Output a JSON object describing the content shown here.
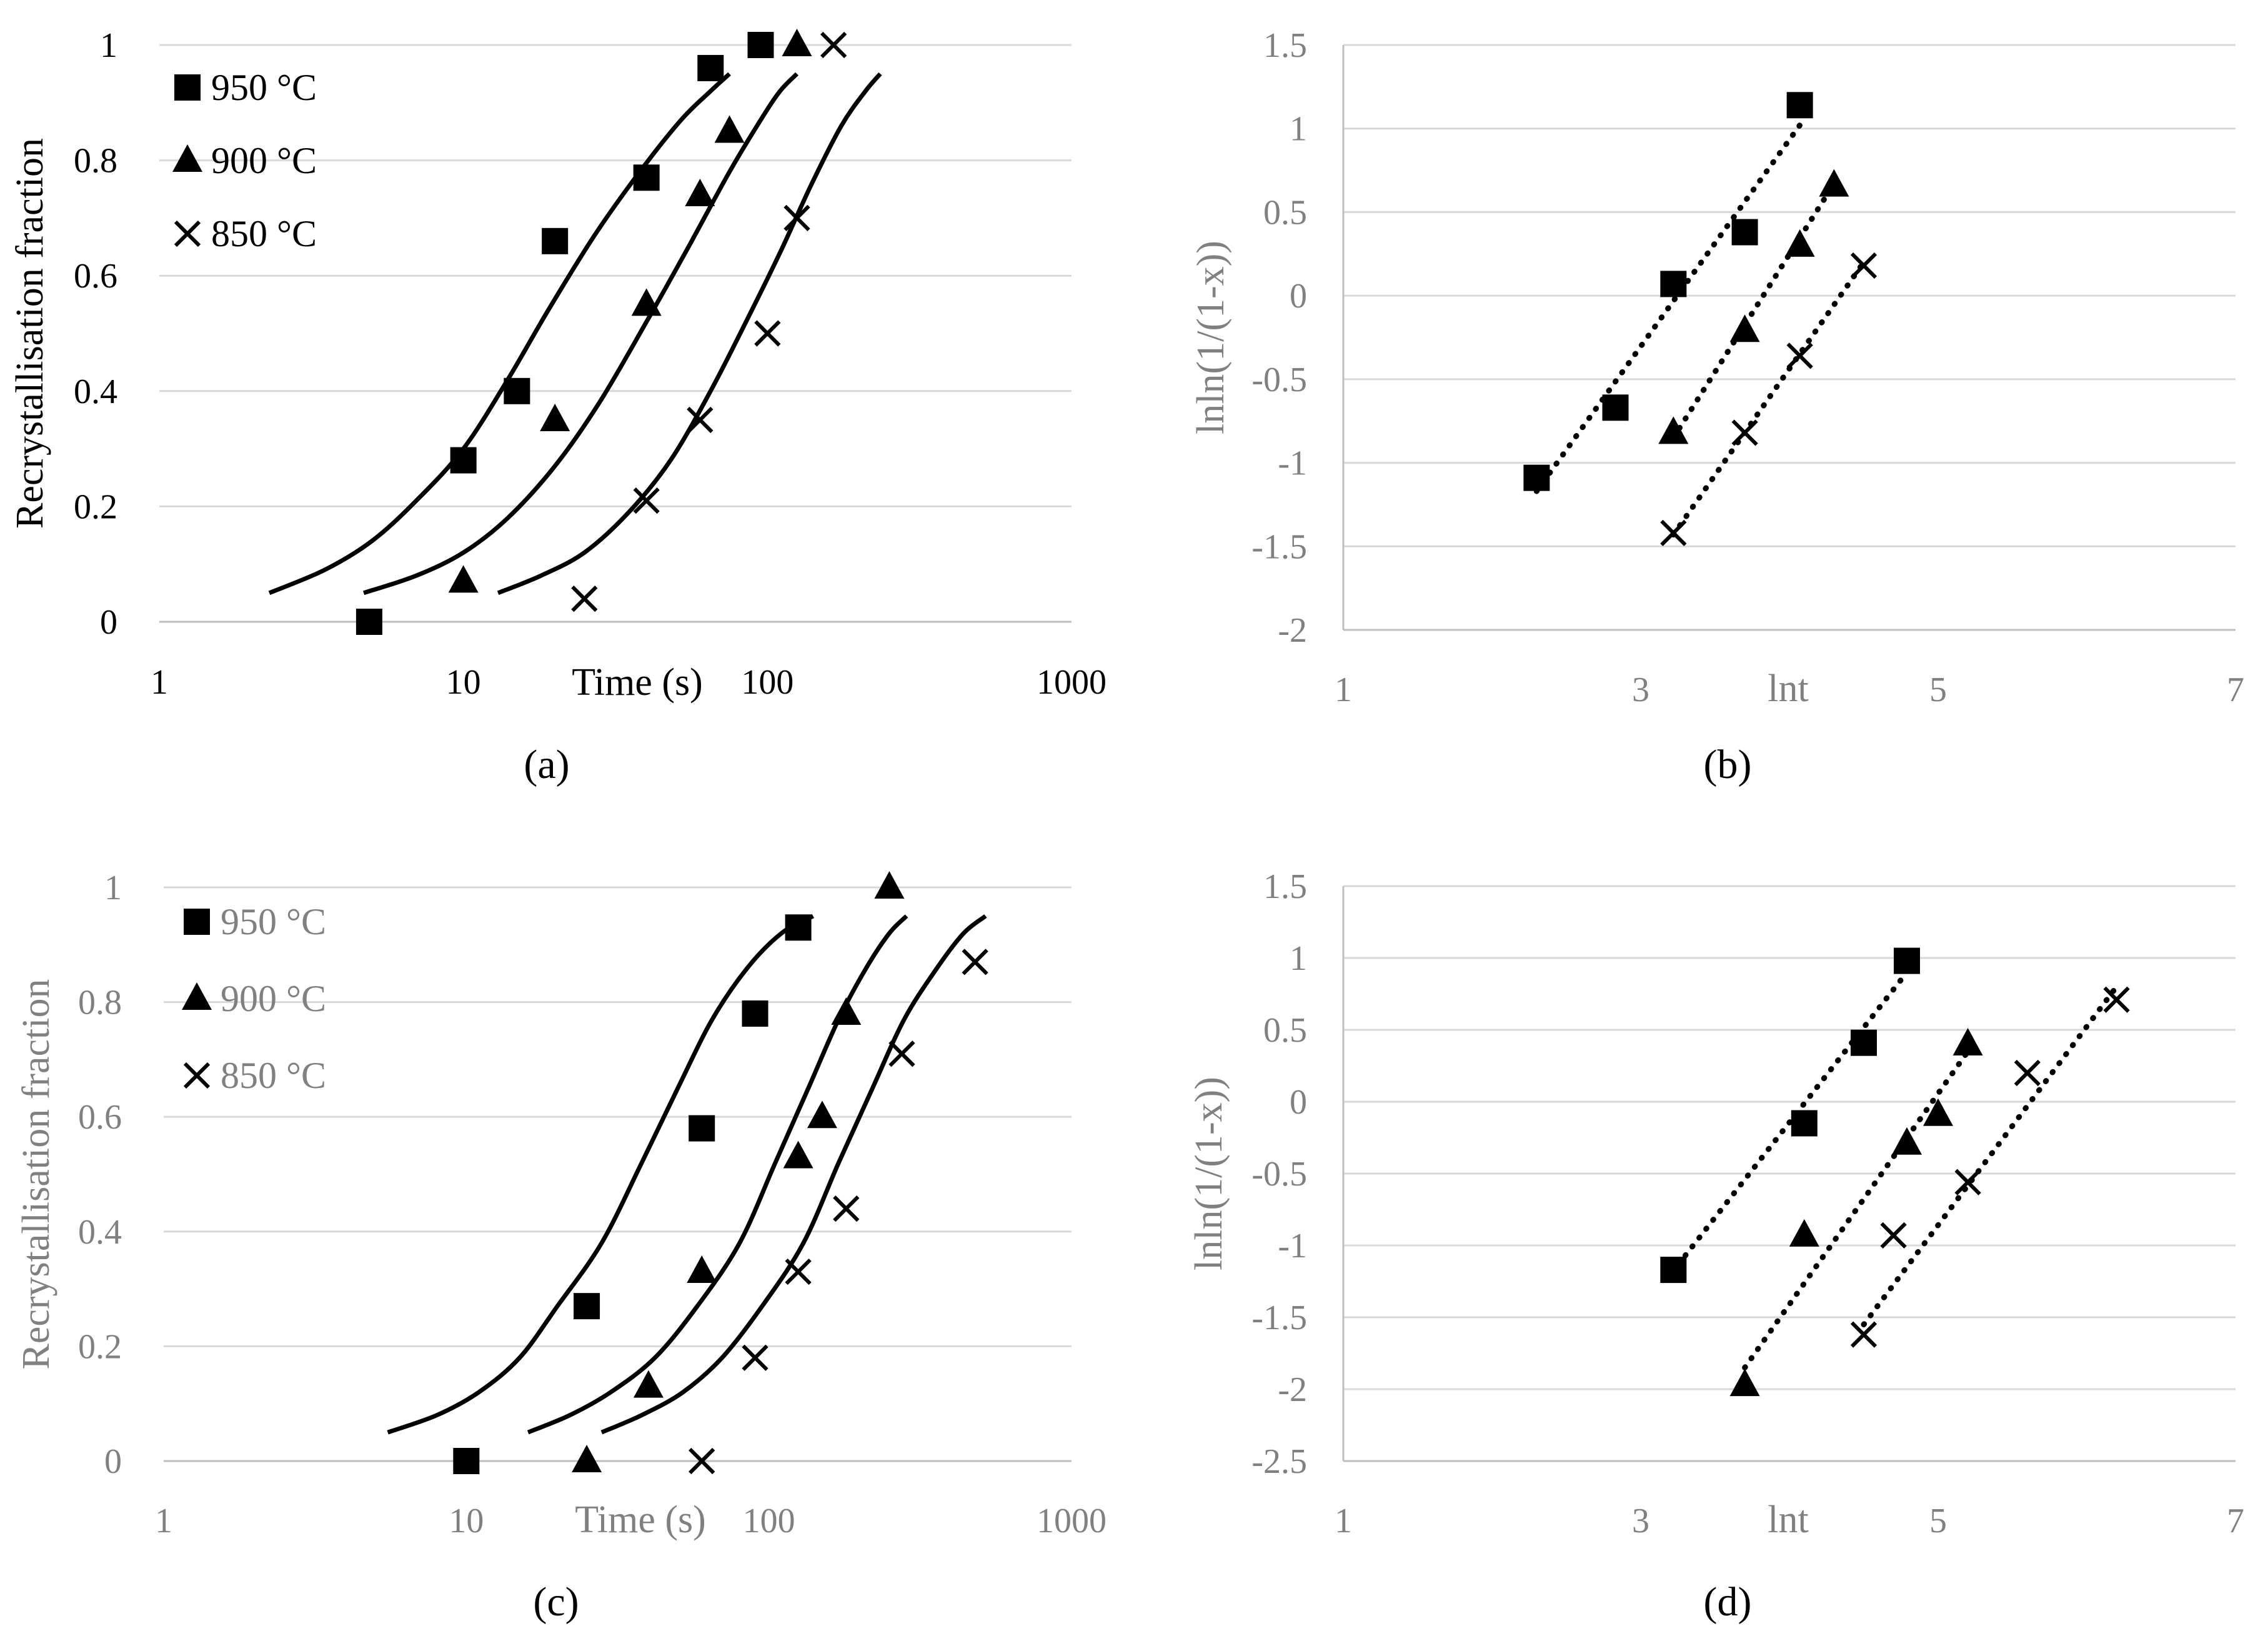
{
  "chart_data": [
    {
      "id": "a",
      "type": "scatter",
      "panel_label": "(a)",
      "x_scale": "log",
      "xlim": [
        1,
        1000
      ],
      "ylim": [
        0,
        1
      ],
      "x_ticks": [
        "1",
        "10",
        "100",
        "1000"
      ],
      "y_ticks": [
        "0",
        "0.2",
        "0.4",
        "0.6",
        "0.8",
        "1"
      ],
      "xlabel": "Time (s)",
      "ylabel": "Recrystallisation fraction",
      "legend_position": "top-left",
      "series": [
        {
          "name": "950 °C",
          "marker": "square",
          "x": [
            4.9,
            10,
            15,
            20,
            40,
            65,
            95
          ],
          "y": [
            0,
            0.28,
            0.4,
            0.66,
            0.77,
            0.96,
            1
          ],
          "fit_x": [
            2.3,
            3.5,
            5,
            7,
            10,
            14,
            19,
            27,
            38,
            52,
            65,
            75
          ],
          "fit_y": [
            0.05,
            0.09,
            0.14,
            0.21,
            0.3,
            0.42,
            0.54,
            0.67,
            0.78,
            0.87,
            0.92,
            0.95
          ]
        },
        {
          "name": "900 °C",
          "marker": "triangle",
          "x": [
            10,
            20,
            40,
            60,
            75,
            125
          ],
          "y": [
            0.07,
            0.35,
            0.55,
            0.74,
            0.85,
            1
          ],
          "fit_x": [
            4.7,
            7,
            10,
            14,
            20,
            28,
            40,
            55,
            75,
            95,
            110,
            125
          ],
          "fit_y": [
            0.05,
            0.08,
            0.12,
            0.18,
            0.27,
            0.38,
            0.52,
            0.65,
            0.78,
            0.87,
            0.92,
            0.95
          ]
        },
        {
          "name": "850 °C",
          "marker": "x",
          "x": [
            25,
            40,
            60,
            100,
            125,
            165
          ],
          "y": [
            0.04,
            0.21,
            0.35,
            0.5,
            0.7,
            1
          ],
          "fit_x": [
            13,
            18,
            25,
            35,
            48,
            65,
            85,
            110,
            140,
            175,
            210,
            235
          ],
          "fit_y": [
            0.05,
            0.08,
            0.12,
            0.19,
            0.28,
            0.4,
            0.52,
            0.64,
            0.76,
            0.86,
            0.92,
            0.95
          ]
        }
      ]
    },
    {
      "id": "b",
      "type": "scatter",
      "panel_label": "(b)",
      "xlim": [
        1,
        7
      ],
      "ylim": [
        -2,
        1.5
      ],
      "x_ticks": [
        "1",
        "3",
        "5",
        "7"
      ],
      "y_ticks": [
        "-2",
        "-1.5",
        "-1",
        "-0.5",
        "0",
        "0.5",
        "1",
        "1.5"
      ],
      "xlabel": "lnt",
      "ylabel": "lnln(1/(1-x))",
      "series": [
        {
          "name": "950 °C",
          "marker": "square",
          "x": [
            2.3,
            2.83,
            3.22,
            3.7,
            4.07
          ],
          "y": [
            -1.09,
            -0.67,
            0.07,
            0.38,
            1.14
          ],
          "fit": [
            [
              2.3,
              -1.17
            ],
            [
              4.07,
              1.02
            ]
          ]
        },
        {
          "name": "900 °C",
          "marker": "triangle",
          "x": [
            3.22,
            3.7,
            4.07,
            4.3
          ],
          "y": [
            -0.82,
            -0.21,
            0.3,
            0.66
          ],
          "fit": [
            [
              3.22,
              -0.85
            ],
            [
              4.3,
              0.67
            ]
          ]
        },
        {
          "name": "850 °C",
          "marker": "x",
          "x": [
            3.22,
            3.7,
            4.07,
            4.5
          ],
          "y": [
            -1.42,
            -0.82,
            -0.36,
            0.18
          ],
          "fit": [
            [
              3.22,
              -1.43
            ],
            [
              4.5,
              0.2
            ]
          ]
        }
      ]
    },
    {
      "id": "c",
      "type": "scatter",
      "panel_label": "(c)",
      "x_scale": "log",
      "xlim": [
        1,
        1000
      ],
      "ylim": [
        0,
        1
      ],
      "x_ticks": [
        "1",
        "10",
        "100",
        "1000"
      ],
      "y_ticks": [
        "0",
        "0.2",
        "0.4",
        "0.6",
        "0.8",
        "1"
      ],
      "xlabel": "Time (s)",
      "ylabel": "Recrystallisation fraction",
      "legend_position": "top-left",
      "series": [
        {
          "name": "950 °C",
          "marker": "square",
          "x": [
            10,
            25,
            60,
            90,
            125
          ],
          "y": [
            0,
            0.27,
            0.58,
            0.78,
            0.93
          ],
          "fit_x": [
            5.5,
            8,
            11,
            15,
            20,
            28,
            38,
            50,
            65,
            85,
            110,
            140
          ],
          "fit_y": [
            0.05,
            0.08,
            0.12,
            0.18,
            0.27,
            0.38,
            0.52,
            0.65,
            0.77,
            0.86,
            0.92,
            0.95
          ]
        },
        {
          "name": "900 °C",
          "marker": "triangle",
          "x": [
            25,
            40,
            60,
            125,
            150,
            180,
            250
          ],
          "y": [
            0,
            0.13,
            0.33,
            0.53,
            0.6,
            0.78,
            1
          ],
          "fit_x": [
            16,
            22,
            30,
            42,
            58,
            80,
            105,
            135,
            170,
            210,
            250,
            285
          ],
          "fit_y": [
            0.05,
            0.08,
            0.12,
            0.18,
            0.27,
            0.38,
            0.52,
            0.65,
            0.77,
            0.86,
            0.92,
            0.95
          ]
        },
        {
          "name": "850 °C",
          "marker": "x",
          "x": [
            60,
            90,
            125,
            180,
            275,
            480
          ],
          "y": [
            0,
            0.18,
            0.33,
            0.44,
            0.71,
            0.87
          ],
          "fit_x": [
            28,
            38,
            52,
            70,
            95,
            130,
            170,
            220,
            280,
            360,
            440,
            520
          ],
          "fit_y": [
            0.05,
            0.08,
            0.12,
            0.18,
            0.27,
            0.38,
            0.52,
            0.65,
            0.77,
            0.86,
            0.92,
            0.95
          ]
        }
      ]
    },
    {
      "id": "d",
      "type": "scatter",
      "panel_label": "(d)",
      "xlim": [
        1,
        7
      ],
      "ylim": [
        -2.5,
        1.5
      ],
      "x_ticks": [
        "1",
        "3",
        "5",
        "7"
      ],
      "y_ticks": [
        "-2.5",
        "-2",
        "-1.5",
        "-1",
        "-0.5",
        "0",
        "0.5",
        "1",
        "1.5"
      ],
      "xlabel": "lnt",
      "ylabel": "lnln(1/(1-x))",
      "series": [
        {
          "name": "950 °C",
          "marker": "square",
          "x": [
            3.22,
            4.1,
            4.5,
            4.79
          ],
          "y": [
            -1.17,
            -0.15,
            0.41,
            0.98
          ],
          "fit": [
            [
              3.3,
              -1.07
            ],
            [
              4.79,
              0.9
            ]
          ]
        },
        {
          "name": "900 °C",
          "marker": "triangle",
          "x": [
            3.7,
            4.1,
            4.79,
            5.0,
            5.2
          ],
          "y": [
            -1.97,
            -0.93,
            -0.29,
            -0.09,
            0.4
          ],
          "fit": [
            [
              3.7,
              -1.85
            ],
            [
              5.2,
              0.35
            ]
          ]
        },
        {
          "name": "850 °C",
          "marker": "x",
          "x": [
            4.5,
            4.7,
            5.2,
            5.6,
            6.2
          ],
          "y": [
            -1.62,
            -0.93,
            -0.56,
            0.2,
            0.71
          ],
          "fit": [
            [
              4.5,
              -1.55
            ],
            [
              6.2,
              0.8
            ]
          ]
        }
      ]
    }
  ]
}
